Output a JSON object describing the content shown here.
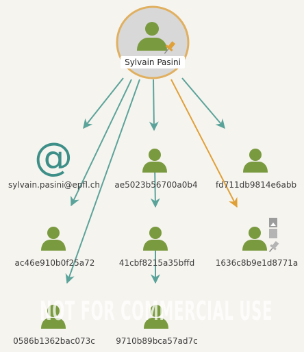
{
  "graph": {
    "root": {
      "label": "Sylvain Pasini"
    },
    "nodes": [
      {
        "id": "email",
        "label": "sylvain.pasini@epfl.ch",
        "icon": "at-icon"
      },
      {
        "id": "n1",
        "label": "ae5023b56700a0b4",
        "icon": "person-icon"
      },
      {
        "id": "n2",
        "label": "fd711db9814e6abb",
        "icon": "person-icon"
      },
      {
        "id": "n3",
        "label": "ac46e910b0f25a72",
        "icon": "person-icon"
      },
      {
        "id": "n4",
        "label": "41cbf8215a35bffd",
        "icon": "person-icon"
      },
      {
        "id": "n5",
        "label": "1636c8b9e1d8771a",
        "icon": "person-icon"
      },
      {
        "id": "n6",
        "label": "0586b1362bac073c",
        "icon": "person-icon"
      },
      {
        "id": "n7",
        "label": "9710b89bca57ad7c",
        "icon": "person-icon"
      }
    ],
    "watermark": "NOT FOR COMMERCIAL USE"
  },
  "colors": {
    "teal": "#5aa39a",
    "orange": "#e0a038",
    "person": "#7a9a40",
    "root_ring": "#e0b060",
    "pin": "#e0a038",
    "gray_icon": "#9c9c9c"
  }
}
